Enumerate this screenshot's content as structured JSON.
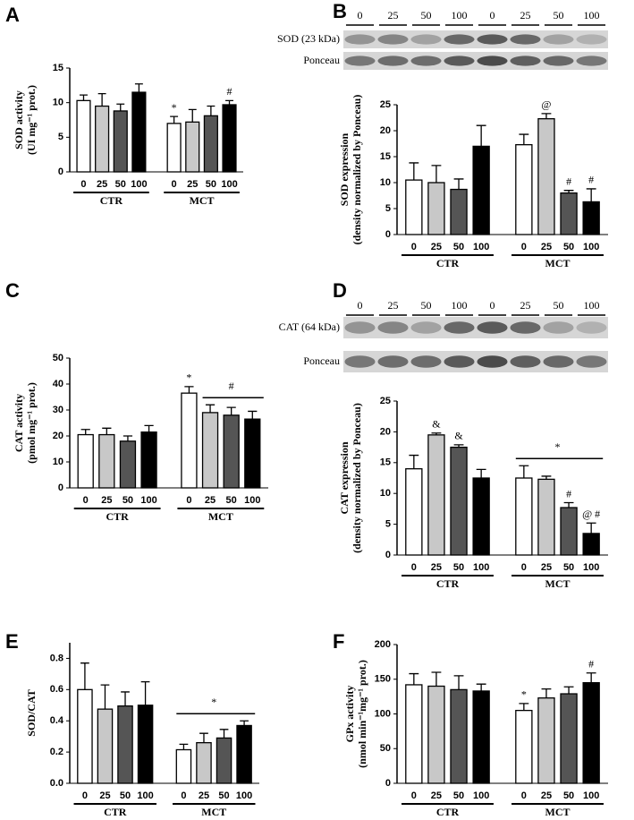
{
  "chart_data": [
    {
      "type": "bar",
      "panel": "A",
      "ylabel": [
        "SOD activity",
        "(UI mg⁻¹ prot.)"
      ],
      "categories": [
        "0",
        "25",
        "50",
        "100",
        "0",
        "25",
        "50",
        "100"
      ],
      "groups": [
        "CTR",
        "MCT"
      ],
      "values": [
        10.3,
        9.5,
        8.8,
        11.5,
        7.0,
        7.2,
        8.1,
        9.7
      ],
      "errors": [
        0.8,
        1.8,
        1.0,
        1.2,
        1.0,
        1.8,
        1.4,
        0.6
      ],
      "colors": [
        "#ffffff",
        "#c8c8c8",
        "#555555",
        "#000000"
      ],
      "bar_labels": [
        null,
        null,
        null,
        null,
        "*",
        null,
        null,
        "#"
      ],
      "ylim": [
        0,
        15
      ],
      "yticks": [
        0,
        5,
        10,
        15
      ]
    },
    {
      "type": "bar",
      "panel": "B",
      "ylabel": [
        "SOD expression",
        "(density normalized by Ponceau)"
      ],
      "blot": {
        "lanes": [
          "0",
          "25",
          "50",
          "100",
          "0",
          "25",
          "50",
          "100"
        ],
        "rows": [
          "SOD (23 kDa)",
          "Ponceau"
        ]
      },
      "categories": [
        "0",
        "25",
        "50",
        "100",
        "0",
        "25",
        "50",
        "100"
      ],
      "groups": [
        "CTR",
        "MCT"
      ],
      "values": [
        10.5,
        10.0,
        8.7,
        17.0,
        17.3,
        22.3,
        8.0,
        6.3
      ],
      "errors": [
        3.3,
        3.3,
        2.0,
        4.0,
        2.0,
        1.0,
        0.5,
        2.5
      ],
      "colors": [
        "#ffffff",
        "#c8c8c8",
        "#555555",
        "#000000"
      ],
      "bar_labels": [
        null,
        null,
        null,
        null,
        null,
        "@",
        "#",
        "#"
      ],
      "ylim": [
        0,
        25
      ],
      "yticks": [
        0,
        5,
        10,
        15,
        20,
        25
      ]
    },
    {
      "type": "bar",
      "panel": "C",
      "ylabel": [
        "CAT activity",
        "(pmol mg⁻¹ prot.)"
      ],
      "categories": [
        "0",
        "25",
        "50",
        "100",
        "0",
        "25",
        "50",
        "100"
      ],
      "groups": [
        "CTR",
        "MCT"
      ],
      "values": [
        20.5,
        20.5,
        18.0,
        21.5,
        36.5,
        29.0,
        28.0,
        26.5
      ],
      "errors": [
        2.0,
        2.5,
        2.0,
        2.5,
        2.5,
        3.0,
        3.0,
        3.0
      ],
      "colors": [
        "#ffffff",
        "#c8c8c8",
        "#555555",
        "#000000"
      ],
      "bar_labels": [
        null,
        null,
        null,
        null,
        "*",
        null,
        null,
        null
      ],
      "bracket": {
        "text": "#",
        "covers": [
          false,
          false,
          false,
          false,
          false,
          true,
          true,
          true
        ]
      },
      "ylim": [
        0,
        50
      ],
      "yticks": [
        0,
        10,
        20,
        30,
        40,
        50
      ]
    },
    {
      "type": "bar",
      "panel": "D",
      "ylabel": [
        "CAT expression",
        "(density normalized by Ponceau)"
      ],
      "blot": {
        "lanes": [
          "0",
          "25",
          "50",
          "100",
          "0",
          "25",
          "50",
          "100"
        ],
        "rows": [
          "CAT (64 kDa)",
          "Ponceau"
        ]
      },
      "categories": [
        "0",
        "25",
        "50",
        "100",
        "0",
        "25",
        "50",
        "100"
      ],
      "groups": [
        "CTR",
        "MCT"
      ],
      "values": [
        14.0,
        19.5,
        17.5,
        12.5,
        12.5,
        12.3,
        7.7,
        3.5
      ],
      "errors": [
        2.2,
        0.3,
        0.4,
        1.4,
        2.0,
        0.5,
        0.8,
        1.7
      ],
      "colors": [
        "#ffffff",
        "#c8c8c8",
        "#555555",
        "#000000"
      ],
      "bar_labels": [
        null,
        "&",
        "&",
        null,
        null,
        null,
        "#",
        "@ #"
      ],
      "bracket": {
        "text": "*",
        "covers": [
          false,
          false,
          false,
          false,
          true,
          true,
          true,
          true
        ]
      },
      "ylim": [
        0,
        25
      ],
      "yticks": [
        0,
        5,
        10,
        15,
        20,
        25
      ]
    },
    {
      "type": "bar",
      "panel": "E",
      "ylabel": [
        "SOD/CAT"
      ],
      "categories": [
        "0",
        "25",
        "50",
        "100",
        "0",
        "25",
        "50",
        "100"
      ],
      "groups": [
        "CTR",
        "MCT"
      ],
      "values": [
        0.6,
        0.475,
        0.495,
        0.5,
        0.215,
        0.26,
        0.29,
        0.37
      ],
      "errors": [
        0.17,
        0.155,
        0.09,
        0.15,
        0.035,
        0.06,
        0.055,
        0.03
      ],
      "colors": [
        "#ffffff",
        "#c8c8c8",
        "#555555",
        "#000000"
      ],
      "bar_labels": [
        null,
        null,
        null,
        null,
        null,
        null,
        null,
        null
      ],
      "bracket": {
        "text": "*",
        "covers": [
          false,
          false,
          false,
          false,
          true,
          true,
          true,
          true
        ]
      },
      "ylim": [
        0,
        0.9
      ],
      "yticks": [
        {
          "value": 0,
          "label": "0.0"
        },
        0.2,
        0.4,
        0.6,
        0.8
      ]
    },
    {
      "type": "bar",
      "panel": "F",
      "ylabel": [
        "GPx activity",
        "(nmol min⁻¹mg⁻¹ prot.)"
      ],
      "categories": [
        "0",
        "25",
        "50",
        "100",
        "0",
        "25",
        "50",
        "100"
      ],
      "groups": [
        "CTR",
        "MCT"
      ],
      "values": [
        142,
        140,
        135,
        133,
        105,
        123,
        129,
        145
      ],
      "errors": [
        16,
        20,
        20,
        10,
        10,
        13,
        10,
        14
      ],
      "colors": [
        "#ffffff",
        "#c8c8c8",
        "#555555",
        "#000000"
      ],
      "bar_labels": [
        null,
        null,
        null,
        null,
        "*",
        null,
        null,
        "#"
      ],
      "ylim": [
        0,
        200
      ],
      "yticks": [
        0,
        50,
        100,
        150,
        200
      ]
    }
  ]
}
